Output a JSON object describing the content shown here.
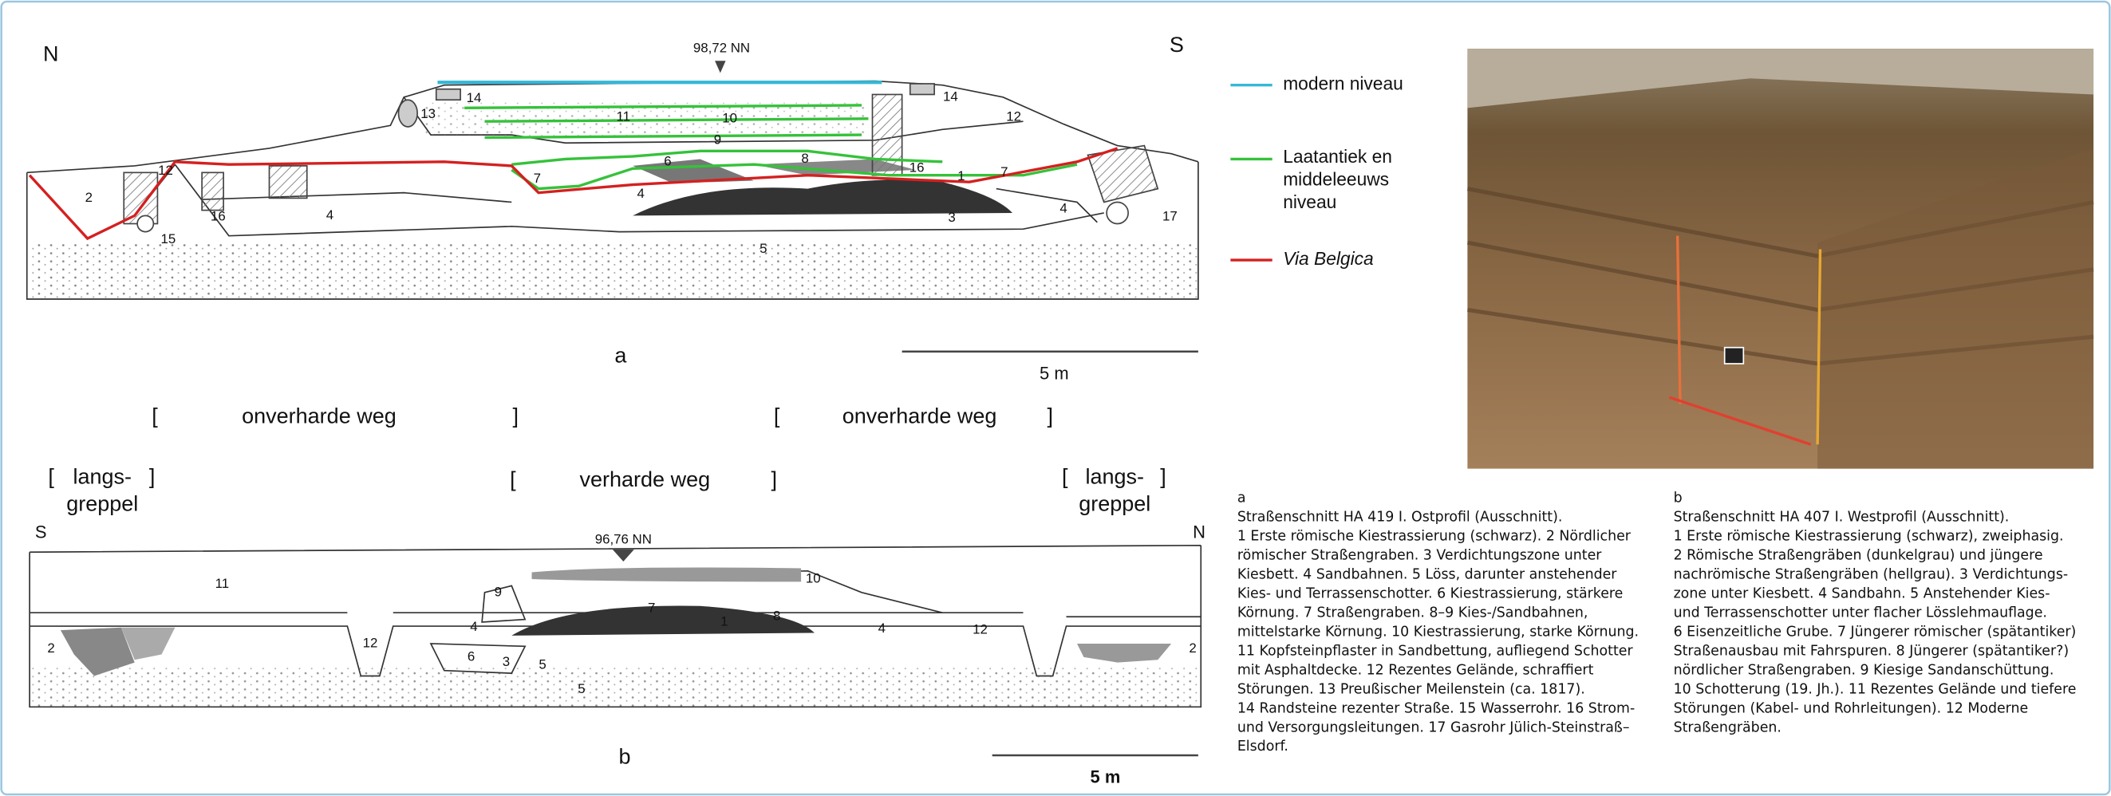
{
  "section_a": {
    "north": "N",
    "south": "S",
    "elevation": "98,72 NN",
    "figure_label": "a",
    "scale": "5 m",
    "layer_labels": [
      "14",
      "13",
      "11",
      "10",
      "9",
      "14",
      "12",
      "12",
      "2",
      "16",
      "4",
      "15",
      "7",
      "6",
      "8",
      "16",
      "1",
      "7",
      "4",
      "3",
      "4",
      "17",
      "5"
    ]
  },
  "legend": {
    "items": [
      {
        "lines": [
          "modern niveau"
        ],
        "color": "#35b8d6"
      },
      {
        "lines": [
          "Laatantiek en",
          "middeleeuws",
          "niveau"
        ],
        "color": "#35c23a"
      },
      {
        "lines": [
          "Via Belgica"
        ],
        "color": "#d42020"
      }
    ]
  },
  "roads": {
    "bracket_open": "[",
    "bracket_close": "]",
    "unpaved": "onverharde weg",
    "paved": "verharde weg",
    "ditch_line1": "langs-",
    "ditch_line2": "greppel"
  },
  "section_b": {
    "south": "S",
    "north": "N",
    "elevation": "96,76 NN",
    "figure_label": "b",
    "scale": "5 m",
    "layer_labels": [
      "11",
      "9",
      "10",
      "7",
      "4",
      "1",
      "8",
      "4",
      "12",
      "12",
      "2",
      "2",
      "6",
      "3",
      "5",
      "5"
    ]
  },
  "caption_a": {
    "lines": [
      "a",
      "Straßenschnitt HA 419 I. Ostprofil (Ausschnitt).",
      "1 Erste römische Kiestrassierung (schwarz). 2 Nördlicher",
      "römischer Straßengraben. 3 Verdichtungszone unter",
      "Kiesbett. 4 Sandbahnen. 5 Löss, darunter anstehender",
      "Kies- und Terrassenschotter. 6 Kiestrassierung, stärkere",
      "Körnung. 7 Straßengraben. 8–9 Kies-/Sandbahnen,",
      "mittelstarke Körnung. 10 Kiestrassierung, starke Körnung.",
      "11 Kopfsteinpflaster in Sandbettung, aufliegend Schotter",
      "mit Asphaltdecke. 12 Rezentes Gelände, schraffiert",
      "Störungen. 13 Preußischer Meilenstein (ca. 1817).",
      "14 Randsteine rezenter Straße. 15 Wasserrohr. 16 Strom-",
      "und Versorgungsleitungen. 17 Gasrohr Jülich-Steinstraß–",
      "Elsdorf."
    ]
  },
  "caption_b": {
    "lines": [
      "b",
      "Straßenschnitt HA 407 I. Westprofil (Ausschnitt).",
      "1 Erste römische Kiestrassierung (schwarz), zweiphasig.",
      "2 Römische Straßengräben (dunkelgrau) und jüngere",
      "nachrömische Straßengräben (hellgrau). 3 Verdichtungs-",
      "zone unter Kiesbett. 4 Sandbahn. 5 Anstehender Kies-",
      "und Terrassenschotter unter flacher Lösslehmauflage.",
      "6 Eisenzeitliche Grube. 7 Jüngerer römischer (spätantiker)",
      "Straßenausbau mit Fahrspuren. 8 Jüngerer (spätantiker?)",
      "nördlicher Straßengraben. 9 Kiesige Sandanschüttung.",
      "10 Schotterung (19. Jh.). 11 Rezentes Gelände und tiefere",
      "Störungen (Kabel- und Rohrleitungen). 12 Moderne",
      "Straßengräben."
    ]
  }
}
